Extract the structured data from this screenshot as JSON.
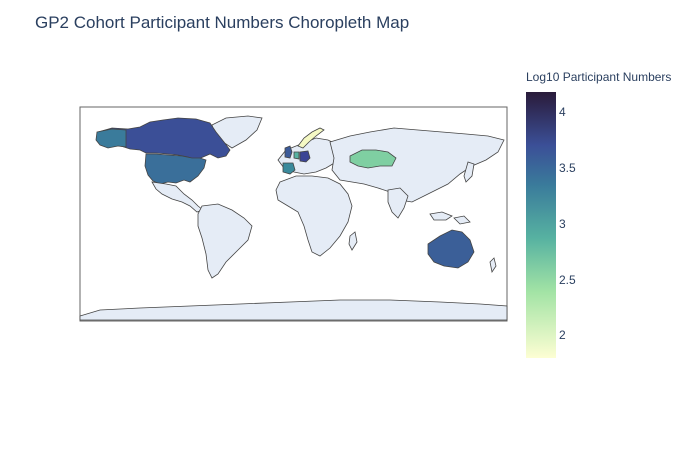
{
  "title": "GP2 Cohort Participant Numbers Choropleth Map",
  "colorbar": {
    "title": "Log10 Participant Numbers",
    "ticks": [
      "4",
      "3.5",
      "3",
      "2.5",
      "2"
    ]
  },
  "colors": {
    "land": "#e5ecf6",
    "coast": "#444444",
    "frame": "#666666",
    "text": "#2a3f5f"
  },
  "countries": [
    {
      "name": "United States",
      "value": 3.3
    },
    {
      "name": "Canada",
      "value": 3.5
    },
    {
      "name": "Australia",
      "value": 3.4
    },
    {
      "name": "Kazakhstan",
      "value": 2.6
    },
    {
      "name": "Spain",
      "value": 2.9
    },
    {
      "name": "Norway",
      "value": 1.9
    },
    {
      "name": "Germany",
      "value": 3.6
    },
    {
      "name": "United Kingdom",
      "value": 3.4
    }
  ]
}
